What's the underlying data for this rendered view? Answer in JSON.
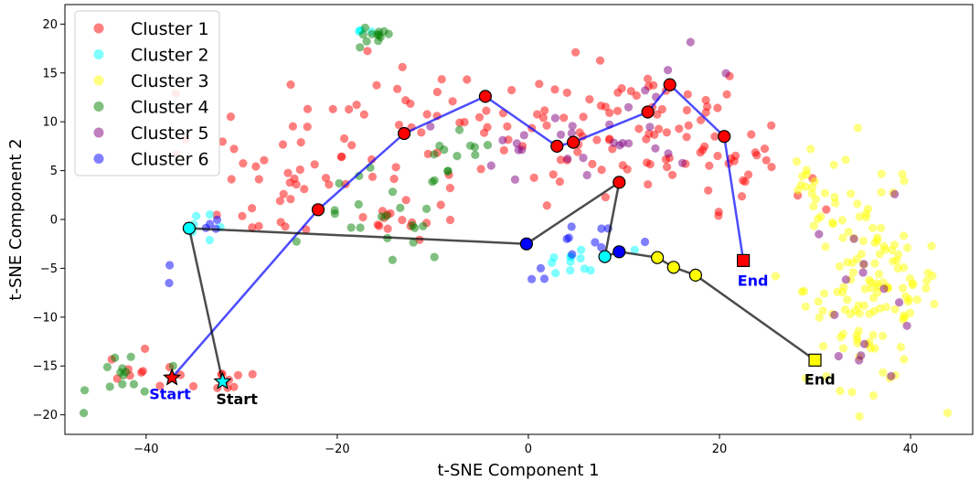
{
  "chart_data": {
    "type": "scatter",
    "xlabel": "t-SNE Component 1",
    "ylabel": "t-SNE Component 2",
    "xlim": [
      -48.5,
      46.5
    ],
    "ylim": [
      -22,
      22
    ],
    "xticks": [
      -40,
      -20,
      0,
      20,
      40
    ],
    "yticks": [
      -20,
      -15,
      -10,
      -5,
      0,
      5,
      10,
      15,
      20
    ],
    "legend_position": "upper-left",
    "series": [
      {
        "name": "Cluster 1",
        "color": "#ff0000"
      },
      {
        "name": "Cluster 2",
        "color": "#00ffff"
      },
      {
        "name": "Cluster 3",
        "color": "#ffff00"
      },
      {
        "name": "Cluster 4",
        "color": "#008000"
      },
      {
        "name": "Cluster 5",
        "color": "#800080"
      },
      {
        "name": "Cluster 6",
        "color": "#0000ff"
      }
    ],
    "cluster_regions": [
      {
        "cluster": "Cluster 1",
        "count": 220,
        "regions": [
          {
            "cx": -8,
            "cy": 8.5,
            "sx": 14,
            "sy": 3.5,
            "n": 90
          },
          {
            "cx": 12,
            "cy": 9.5,
            "sx": 6,
            "sy": 3.5,
            "n": 55
          },
          {
            "cx": -25,
            "cy": 3,
            "sx": 3.5,
            "sy": 3,
            "n": 20
          },
          {
            "cx": -15,
            "cy": 0,
            "sx": 4,
            "sy": 1,
            "n": 15
          },
          {
            "cx": 23,
            "cy": 5,
            "sx": 3,
            "sy": 2,
            "n": 20
          },
          {
            "cx": -40,
            "cy": -15.5,
            "sx": 2,
            "sy": 1,
            "n": 10
          },
          {
            "cx": -32,
            "cy": -16.5,
            "sx": 1.5,
            "sy": 0.8,
            "n": 10
          }
        ]
      },
      {
        "cluster": "Cluster 2",
        "count": 22,
        "regions": [
          {
            "cx": -35,
            "cy": -0.5,
            "sx": 1,
            "sy": 1,
            "n": 6
          },
          {
            "cx": 5,
            "cy": -4.5,
            "sx": 3,
            "sy": 0.8,
            "n": 12
          },
          {
            "cx": -17,
            "cy": 19.5,
            "sx": 0.5,
            "sy": 0.3,
            "n": 4
          }
        ]
      },
      {
        "cluster": "Cluster 3",
        "count": 150,
        "regions": [
          {
            "cx": 36,
            "cy": -7,
            "sx": 3.5,
            "sy": 5,
            "n": 130
          },
          {
            "cx": 30,
            "cy": 3,
            "sx": 2,
            "sy": 2,
            "n": 20
          }
        ]
      },
      {
        "cluster": "Cluster 4",
        "count": 60,
        "regions": [
          {
            "cx": -16.5,
            "cy": 18.5,
            "sx": 1.2,
            "sy": 0.6,
            "n": 12
          },
          {
            "cx": -15,
            "cy": 0,
            "sx": 3.5,
            "sy": 2.5,
            "n": 22
          },
          {
            "cx": -8,
            "cy": 5.5,
            "sx": 2.5,
            "sy": 1.5,
            "n": 12
          },
          {
            "cx": -42,
            "cy": -16,
            "sx": 2,
            "sy": 1.5,
            "n": 14
          }
        ]
      },
      {
        "cluster": "Cluster 5",
        "count": 45,
        "regions": [
          {
            "cx": 4,
            "cy": 7.5,
            "sx": 5,
            "sy": 2,
            "n": 15
          },
          {
            "cx": 35,
            "cy": -7,
            "sx": 3,
            "sy": 5,
            "n": 15
          },
          {
            "cx": 14,
            "cy": 11,
            "sx": 5,
            "sy": 3,
            "n": 15
          }
        ]
      },
      {
        "cluster": "Cluster 6",
        "count": 18,
        "regions": [
          {
            "cx": 7,
            "cy": -3,
            "sx": 4,
            "sy": 1.5,
            "n": 12
          },
          {
            "cx": -34,
            "cy": -0.5,
            "sx": 1,
            "sy": 0.8,
            "n": 4
          },
          {
            "cx": -38,
            "cy": -6,
            "sx": 1,
            "sy": 1.2,
            "n": 2
          }
        ]
      }
    ],
    "trajectories": [
      {
        "name": "blue-trajectory",
        "color": "#0000ff",
        "points": [
          [
            -37.3,
            -16.2
          ],
          [
            -22,
            1
          ],
          [
            -13,
            8.8
          ],
          [
            -4.5,
            12.6
          ],
          [
            3,
            7.5
          ],
          [
            4.7,
            7.9
          ],
          [
            12.5,
            11
          ],
          [
            14.8,
            13.8
          ],
          [
            20.5,
            8.5
          ],
          [
            22.5,
            -4.2
          ]
        ],
        "point_colors": [
          "#ff0000",
          "#ff0000",
          "#ff0000",
          "#ff0000",
          "#ff0000",
          "#ff0000",
          "#ff0000",
          "#ff0000",
          "#ff0000",
          "#ff0000"
        ],
        "start_label": "Start",
        "start_label_at": [
          -37.5,
          -18.4
        ],
        "end_label": "End",
        "end_label_at": [
          23.5,
          -6.8
        ]
      },
      {
        "name": "black-trajectory",
        "color": "#000000",
        "points": [
          [
            -32,
            -16.6
          ],
          [
            -35.5,
            -0.9
          ],
          [
            -0.2,
            -2.5
          ],
          [
            9.5,
            3.8
          ],
          [
            8,
            -3.8
          ],
          [
            9.5,
            -3.3
          ],
          [
            13.5,
            -3.9
          ],
          [
            15.2,
            -4.9
          ],
          [
            17.5,
            -5.7
          ],
          [
            30,
            -14.4
          ]
        ],
        "point_colors": [
          "#00ffff",
          "#00ffff",
          "#0000ff",
          "#ff0000",
          "#00ffff",
          "#0000ff",
          "#ffff00",
          "#ffff00",
          "#ffff00",
          "#ffff00"
        ],
        "start_label": "Start",
        "start_label_at": [
          -30.5,
          -18.9
        ],
        "end_label": "End",
        "end_label_at": [
          30.5,
          -16.9
        ]
      }
    ]
  }
}
